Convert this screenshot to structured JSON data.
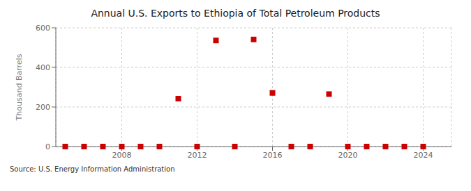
{
  "chart_data": {
    "type": "scatter",
    "title": "Annual U.S. Exports to Ethiopia of Total Petroleum Products",
    "ylabel": "Thousand Barrels",
    "annotation": "Source: U.S. Energy Information Administration",
    "x": [
      2005,
      2006,
      2007,
      2008,
      2009,
      2010,
      2011,
      2012,
      2013,
      2014,
      2015,
      2016,
      2017,
      2018,
      2019,
      2020,
      2021,
      2022,
      2023,
      2024
    ],
    "values": [
      0,
      0,
      0,
      0,
      0,
      0,
      242,
      0,
      536,
      0,
      541,
      271,
      0,
      0,
      265,
      0,
      0,
      0,
      0,
      0
    ],
    "color": "#cc0000",
    "marker": "square",
    "xlim": [
      2004.5,
      2025.5
    ],
    "ylim": [
      0,
      600
    ],
    "xticks": [
      2008,
      2012,
      2016,
      2020,
      2024
    ],
    "yticks": [
      0,
      200,
      400,
      600
    ],
    "grid": true
  }
}
